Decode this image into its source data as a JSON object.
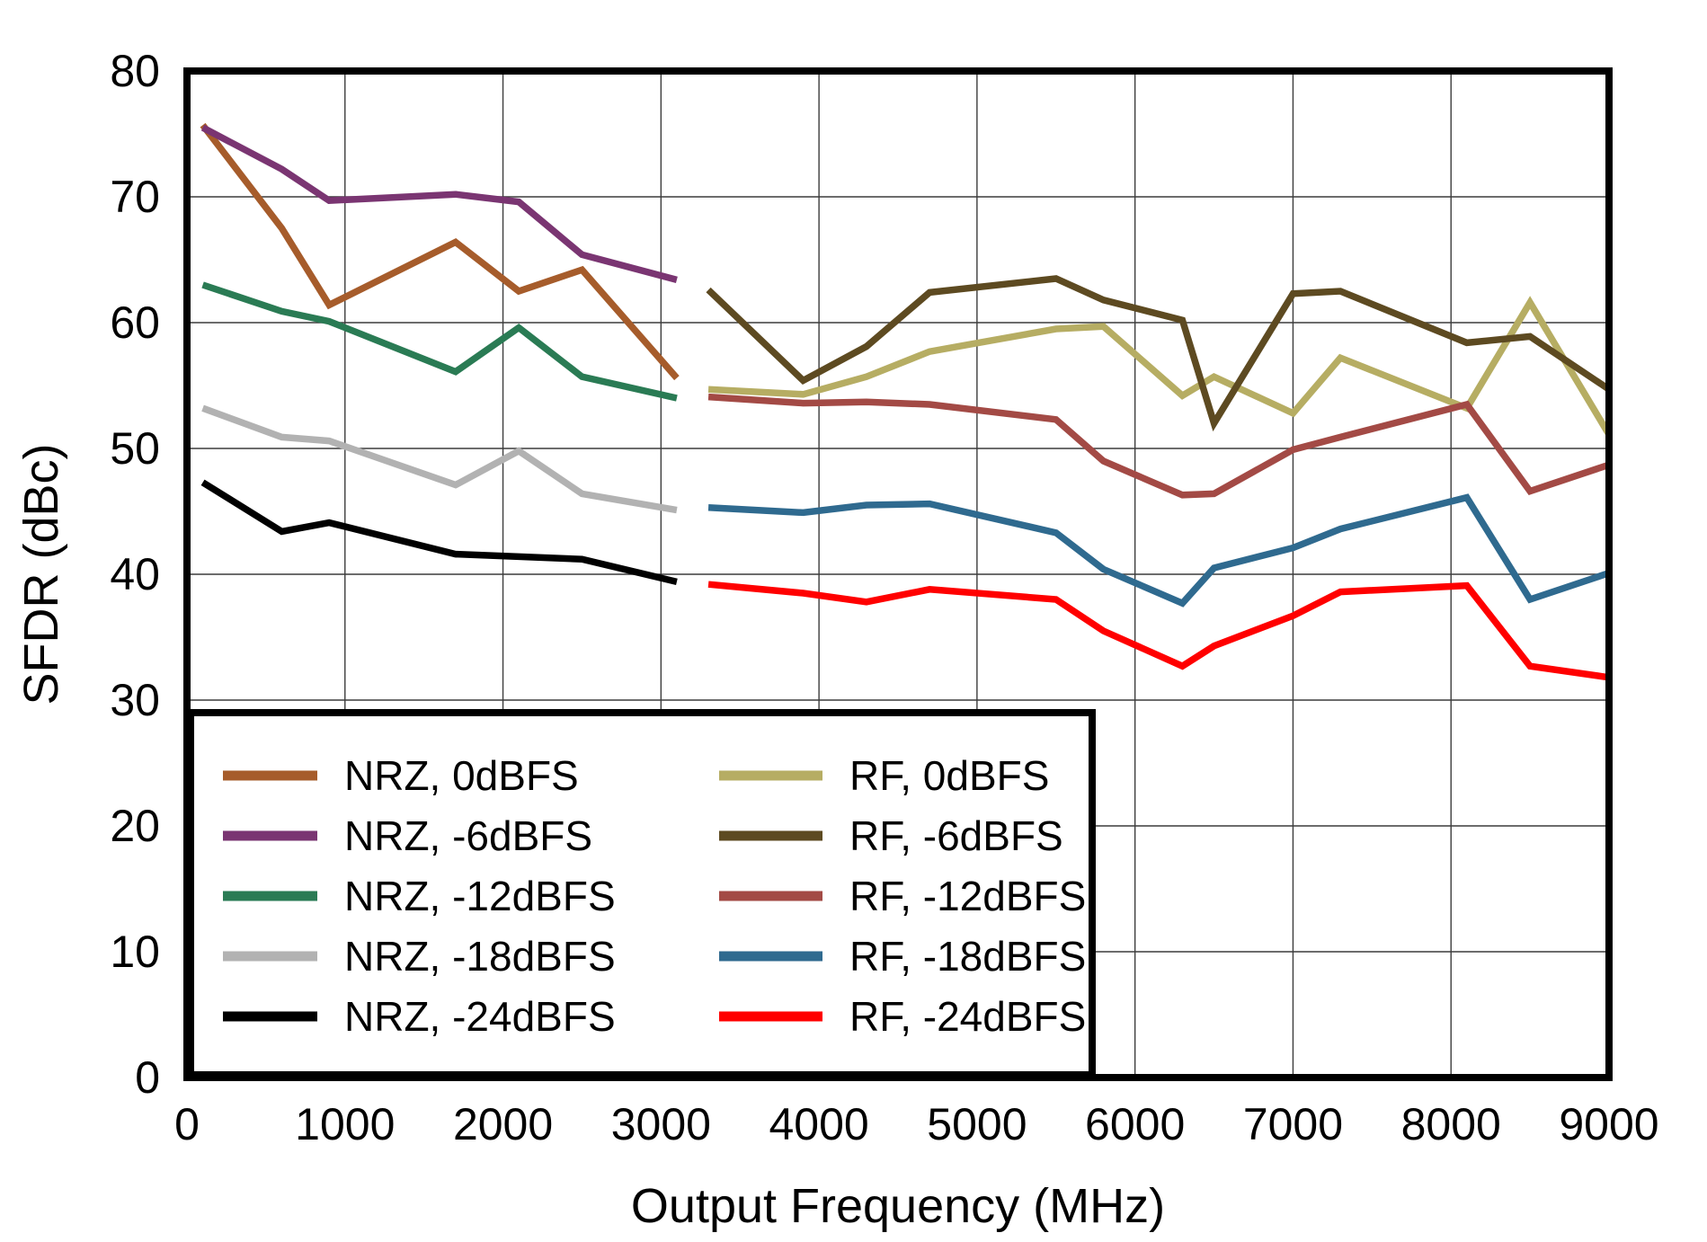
{
  "chart_data": {
    "type": "line",
    "title": "",
    "xlabel": "Output Frequency (MHz)",
    "ylabel": "SFDR (dBc)",
    "xlim": [
      0,
      9000
    ],
    "ylim": [
      0,
      80
    ],
    "x_ticks": [
      0,
      1000,
      2000,
      3000,
      4000,
      5000,
      6000,
      7000,
      8000,
      9000
    ],
    "y_ticks": [
      0,
      10,
      20,
      30,
      40,
      50,
      60,
      70,
      80
    ],
    "grid": true,
    "legend_position": "bottom-left-inside",
    "legend_columns": [
      [
        0,
        1,
        2,
        3,
        4
      ],
      [
        5,
        6,
        7,
        8,
        9
      ]
    ],
    "axis_color": "#000000",
    "grid_color": "#3c3c3c",
    "series": [
      {
        "name": "NRZ, 0dBFS",
        "color": "#A65C2B",
        "x": [
          100,
          600,
          900,
          1700,
          2100,
          2500,
          3100
        ],
        "y": [
          75.7,
          67.5,
          61.4,
          66.4,
          62.5,
          64.2,
          55.6
        ]
      },
      {
        "name": "NRZ, -6dBFS",
        "color": "#7A3572",
        "x": [
          100,
          600,
          900,
          1700,
          2100,
          2500,
          3100
        ],
        "y": [
          75.5,
          72.2,
          69.7,
          70.2,
          69.6,
          65.4,
          63.4
        ]
      },
      {
        "name": "NRZ, -12dBFS",
        "color": "#2A7B54",
        "x": [
          100,
          600,
          900,
          1700,
          2100,
          2500,
          3100
        ],
        "y": [
          63.0,
          60.9,
          60.1,
          56.1,
          59.6,
          55.7,
          54.0
        ]
      },
      {
        "name": "NRZ, -18dBFS",
        "color": "#B2B2B2",
        "x": [
          100,
          600,
          900,
          1700,
          2100,
          2500,
          3100
        ],
        "y": [
          53.2,
          50.9,
          50.6,
          47.1,
          49.8,
          46.4,
          45.1
        ]
      },
      {
        "name": "NRZ, -24dBFS",
        "color": "#000000",
        "x": [
          100,
          600,
          900,
          1700,
          2100,
          2500,
          3100
        ],
        "y": [
          47.3,
          43.4,
          44.1,
          41.6,
          41.4,
          41.2,
          39.4
        ]
      },
      {
        "name": "RF, 0dBFS",
        "color": "#B6AD63",
        "x": [
          3300,
          3900,
          4300,
          4700,
          5500,
          5800,
          6300,
          6500,
          7000,
          7300,
          8100,
          8500,
          9000
        ],
        "y": [
          54.7,
          54.3,
          55.7,
          57.7,
          59.5,
          59.7,
          54.2,
          55.7,
          52.8,
          57.2,
          53.2,
          61.6,
          51.1
        ]
      },
      {
        "name": "RF, -6dBFS",
        "color": "#5D4A21",
        "x": [
          3300,
          3900,
          4300,
          4700,
          5500,
          5800,
          6300,
          6500,
          7000,
          7300,
          8100,
          8500,
          9000
        ],
        "y": [
          62.6,
          55.4,
          58.1,
          62.4,
          63.5,
          61.8,
          60.2,
          52.0,
          62.3,
          62.5,
          58.4,
          58.9,
          54.7
        ]
      },
      {
        "name": "RF, -12dBFS",
        "color": "#A34A45",
        "x": [
          3300,
          3900,
          4300,
          4700,
          5500,
          5800,
          6300,
          6500,
          7000,
          7300,
          8100,
          8500,
          9000
        ],
        "y": [
          54.1,
          53.6,
          53.7,
          53.5,
          52.3,
          49.0,
          46.3,
          46.4,
          49.9,
          50.9,
          53.5,
          46.6,
          48.7
        ]
      },
      {
        "name": "RF, -18dBFS",
        "color": "#2F6A8F",
        "x": [
          3300,
          3900,
          4300,
          4700,
          5500,
          5800,
          6300,
          6500,
          7000,
          7300,
          8100,
          8500,
          9000
        ],
        "y": [
          45.3,
          44.9,
          45.5,
          45.6,
          43.3,
          40.4,
          37.7,
          40.5,
          42.1,
          43.6,
          46.1,
          38.0,
          40.1
        ]
      },
      {
        "name": "RF, -24dBFS",
        "color": "#FF0000",
        "x": [
          3300,
          3900,
          4300,
          4700,
          5500,
          5800,
          6300,
          6500,
          7000,
          7300,
          8100,
          8500,
          9000
        ],
        "y": [
          39.2,
          38.5,
          37.8,
          38.8,
          38.0,
          35.5,
          32.7,
          34.3,
          36.7,
          38.6,
          39.1,
          32.7,
          31.8
        ]
      }
    ]
  }
}
